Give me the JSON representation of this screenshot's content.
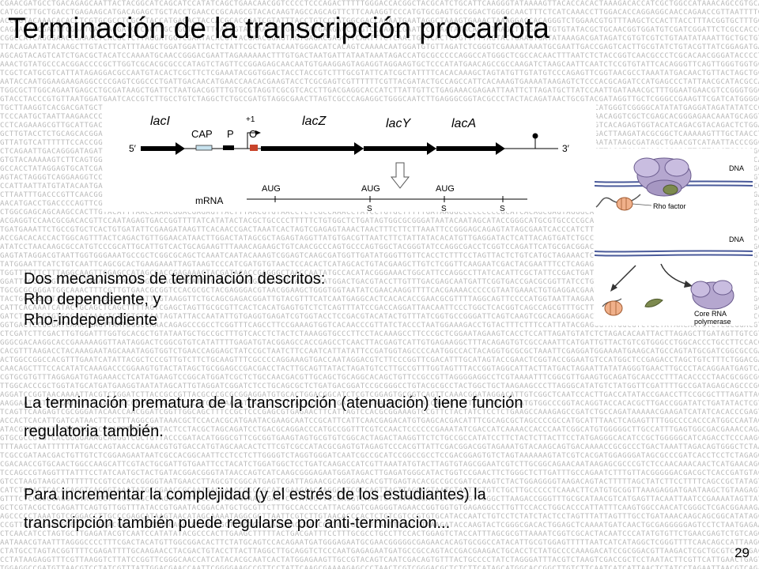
{
  "title": "Terminación de la transcripción procariota",
  "operon": {
    "lacI": "lacI",
    "cap": "CAP",
    "p": "P",
    "plus1": "+1",
    "o": "O",
    "lacZ": "lacZ",
    "lacY": "lacY",
    "lacA": "lacA",
    "five_prime": "5′",
    "three_prime": "3′",
    "mrna": "mRNA",
    "aug": "AUG",
    "s": "S"
  },
  "rho": {
    "dna1": "DNA",
    "dna2": "DNA",
    "rho_factor": "Rho factor",
    "core_line1": "Core RNA",
    "core_line2": "polymerase"
  },
  "paragraphs": {
    "p1": [
      "Dos mecanismos de terminación descritos:",
      "Rho dependiente, y",
      "Rho-independiente"
    ],
    "p2": [
      "La terminación prematura de la transcripción (atenuación) tiene función",
      "regulatoria también."
    ],
    "p3": [
      "Para incrementar la complejidad (y el estrés de los estudiantes) la",
      "transcripción también puede regularse por anti-terminacion..."
    ]
  },
  "slide_number": "29"
}
